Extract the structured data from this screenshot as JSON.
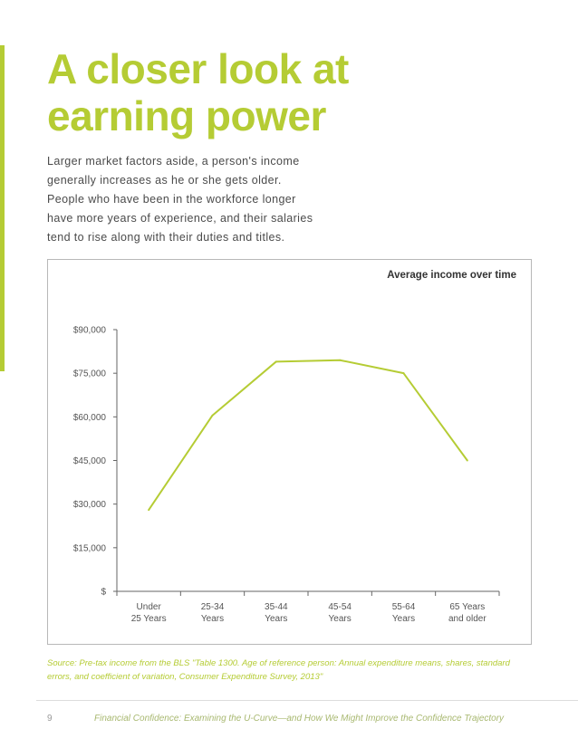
{
  "title": {
    "line1": "A closer look at",
    "line2": "earning power"
  },
  "intro": {
    "lines": [
      "Larger market factors aside, a person's income",
      "generally increases as he or she gets older.",
      "People who have been in the workforce longer",
      "have more years of experience, and their salaries",
      "tend to rise along with their duties and titles."
    ]
  },
  "colors": {
    "accent": "#b5cc34",
    "line": "#b5cc34",
    "axis": "#666666"
  },
  "chart_data": {
    "type": "line",
    "title": "Average income over time",
    "categories": [
      "Under 25 Years",
      "25-34 Years",
      "35-44 Years",
      "45-54 Years",
      "55-64 Years",
      "65 Years and older"
    ],
    "category_lines": [
      [
        "Under",
        "25 Years"
      ],
      [
        "25-34",
        "Years"
      ],
      [
        "35-44",
        "Years"
      ],
      [
        "45-54",
        "Years"
      ],
      [
        "55-64",
        "Years"
      ],
      [
        "65 Years",
        "and older"
      ]
    ],
    "values": [
      28000,
      60500,
      79000,
      79500,
      75000,
      45000
    ],
    "ylim": [
      0,
      90000
    ],
    "yticks": [
      0,
      15000,
      30000,
      45000,
      60000,
      75000,
      90000
    ],
    "ytick_labels": [
      "$",
      "$15,000",
      "$30,000",
      "$45,000",
      "$60,000",
      "$75,000",
      "$90,000"
    ],
    "xlabel": "",
    "ylabel": "",
    "grid": false
  },
  "source": "Source: Pre-tax income from the BLS \"Table 1300. Age of reference person: Annual expenditure means, shares, standard errors, and coefficient of variation, Consumer Expenditure Survey, 2013\"",
  "footer": {
    "page_number": "9",
    "text": "Financial Confidence: Examining the U-Curve—and How We Might Improve the Confidence Trajectory"
  }
}
